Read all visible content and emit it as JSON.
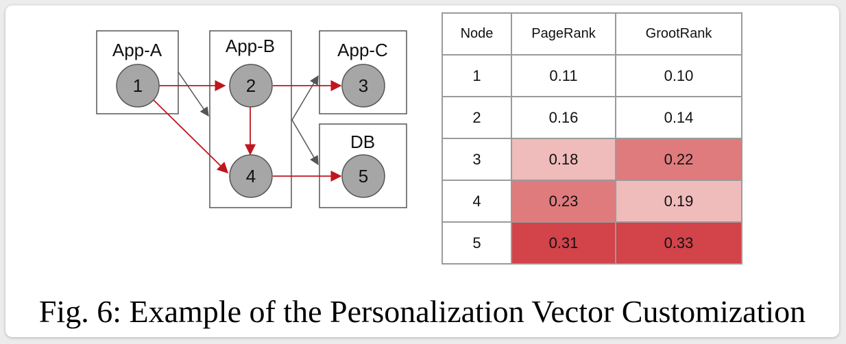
{
  "diagram": {
    "apps": [
      {
        "id": "app-a",
        "label": "App-A"
      },
      {
        "id": "app-b",
        "label": "App-B"
      },
      {
        "id": "app-c",
        "label": "App-C"
      },
      {
        "id": "db",
        "label": "DB"
      }
    ],
    "nodes": [
      "1",
      "2",
      "3",
      "4",
      "5"
    ],
    "colors": {
      "node_fill": "#a6a6a6",
      "red_edge": "#c0161e",
      "gray_edge": "#555555"
    }
  },
  "table": {
    "headers": [
      "Node",
      "PageRank",
      "GrootRank"
    ],
    "rows": [
      {
        "node": "1",
        "pagerank": "0.11",
        "grootrank": "0.10"
      },
      {
        "node": "2",
        "pagerank": "0.16",
        "grootrank": "0.14"
      },
      {
        "node": "3",
        "pagerank": "0.18",
        "grootrank": "0.22"
      },
      {
        "node": "4",
        "pagerank": "0.23",
        "grootrank": "0.19"
      },
      {
        "node": "5",
        "pagerank": "0.31",
        "grootrank": "0.33"
      }
    ],
    "heat_colors": {
      "light": "#efbbbb",
      "medium": "#e07b7d",
      "dark": "#d2434a",
      "none": "#ffffff"
    }
  },
  "caption": "Fig. 6: Example of the Personalization Vector Customization"
}
